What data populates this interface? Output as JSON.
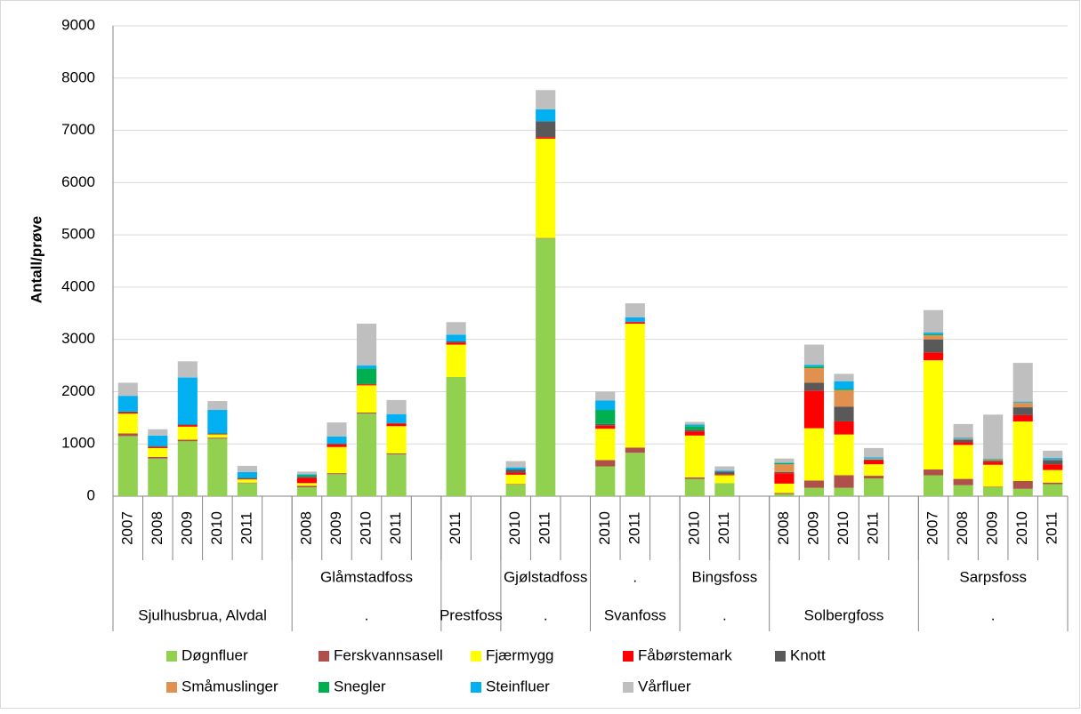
{
  "chart_data": {
    "type": "stacked_bar",
    "y_label": "Antall/prøve",
    "categories": [
      "2007",
      "2008",
      "2009",
      "2010",
      "2011",
      null,
      "2008",
      "2009",
      "2010",
      "2011",
      null,
      "2011",
      null,
      "2010",
      "2011",
      null,
      "2010",
      "2011",
      null,
      "2010",
      "2011",
      null,
      "2008",
      "2009",
      "2010",
      "2011",
      null,
      "2007",
      "2008",
      "2009",
      "2010",
      "2011"
    ],
    "group_labels_row2": [
      null,
      "Glåmstadfoss",
      null,
      "Gjølstadfoss",
      ".",
      "Bingsfoss",
      null,
      "Sarpsfoss"
    ],
    "group_labels_row3": [
      "Sjulhusbrua, Alvdal",
      ".",
      "Prestfoss",
      ".",
      "Svanfoss",
      ".",
      "Solbergfoss",
      "."
    ],
    "ylim": [
      0,
      9000
    ],
    "yticks": [
      0,
      1000,
      2000,
      3000,
      4000,
      5000,
      6000,
      7000,
      8000,
      9000
    ],
    "grid": true,
    "series": [
      {
        "name": "Døgnfluer",
        "color": "#92d050",
        "values": [
          1150,
          720,
          1050,
          1100,
          250,
          null,
          170,
          420,
          1580,
          800,
          null,
          2280,
          null,
          220,
          4930,
          null,
          570,
          830,
          null,
          330,
          250,
          null,
          40,
          160,
          160,
          340,
          null,
          400,
          210,
          170,
          140,
          230
        ]
      },
      {
        "name": "Ferskvannsasell",
        "color": "#b0504a",
        "values": [
          50,
          30,
          30,
          20,
          10,
          null,
          30,
          20,
          20,
          20,
          null,
          0,
          null,
          10,
          10,
          null,
          120,
          100,
          null,
          30,
          0,
          null,
          20,
          140,
          240,
          50,
          null,
          110,
          120,
          10,
          150,
          30
        ]
      },
      {
        "name": "Fjærmygg",
        "color": "#ffff00",
        "values": [
          380,
          170,
          250,
          60,
          60,
          null,
          50,
          500,
          520,
          520,
          null,
          620,
          null,
          180,
          1900,
          null,
          600,
          2370,
          null,
          800,
          150,
          null,
          180,
          1000,
          780,
          220,
          null,
          2090,
          650,
          420,
          1140,
          240
        ]
      },
      {
        "name": "Fåbørstemark",
        "color": "#ff0000",
        "values": [
          20,
          20,
          30,
          10,
          10,
          null,
          100,
          50,
          20,
          50,
          null,
          40,
          null,
          40,
          30,
          null,
          60,
          30,
          null,
          80,
          20,
          null,
          200,
          720,
          250,
          70,
          null,
          150,
          50,
          60,
          120,
          110
        ]
      },
      {
        "name": "Knott",
        "color": "#595959",
        "values": [
          20,
          20,
          10,
          10,
          20,
          null,
          20,
          20,
          10,
          10,
          null,
          20,
          null,
          60,
          300,
          null,
          30,
          10,
          null,
          30,
          50,
          null,
          20,
          150,
          280,
          20,
          null,
          250,
          50,
          20,
          150,
          80
        ]
      },
      {
        "name": "Småmuslinger",
        "color": "#e0914f",
        "values": [
          0,
          0,
          0,
          0,
          0,
          null,
          0,
          0,
          0,
          0,
          null,
          0,
          null,
          0,
          0,
          null,
          0,
          0,
          null,
          0,
          0,
          null,
          150,
          280,
          320,
          20,
          null,
          80,
          20,
          20,
          90,
          10
        ]
      },
      {
        "name": "Snegler",
        "color": "#00b050",
        "values": [
          0,
          0,
          0,
          0,
          0,
          null,
          30,
          0,
          290,
          0,
          null,
          0,
          null,
          0,
          0,
          null,
          270,
          0,
          null,
          70,
          0,
          null,
          20,
          30,
          20,
          0,
          null,
          20,
          0,
          10,
          0,
          0
        ]
      },
      {
        "name": "Steinfluer",
        "color": "#00b0f0",
        "values": [
          300,
          200,
          900,
          450,
          110,
          null,
          20,
          130,
          60,
          170,
          null,
          130,
          null,
          40,
          230,
          null,
          180,
          80,
          null,
          30,
          20,
          null,
          10,
          30,
          150,
          20,
          null,
          30,
          20,
          10,
          20,
          30
        ]
      },
      {
        "name": "Vårfluer",
        "color": "#bfbfbf",
        "values": [
          250,
          120,
          310,
          170,
          120,
          null,
          50,
          270,
          800,
          270,
          null,
          240,
          null,
          120,
          370,
          null,
          170,
          270,
          null,
          50,
          80,
          null,
          80,
          390,
          140,
          180,
          null,
          430,
          260,
          840,
          740,
          140
        ]
      }
    ]
  }
}
